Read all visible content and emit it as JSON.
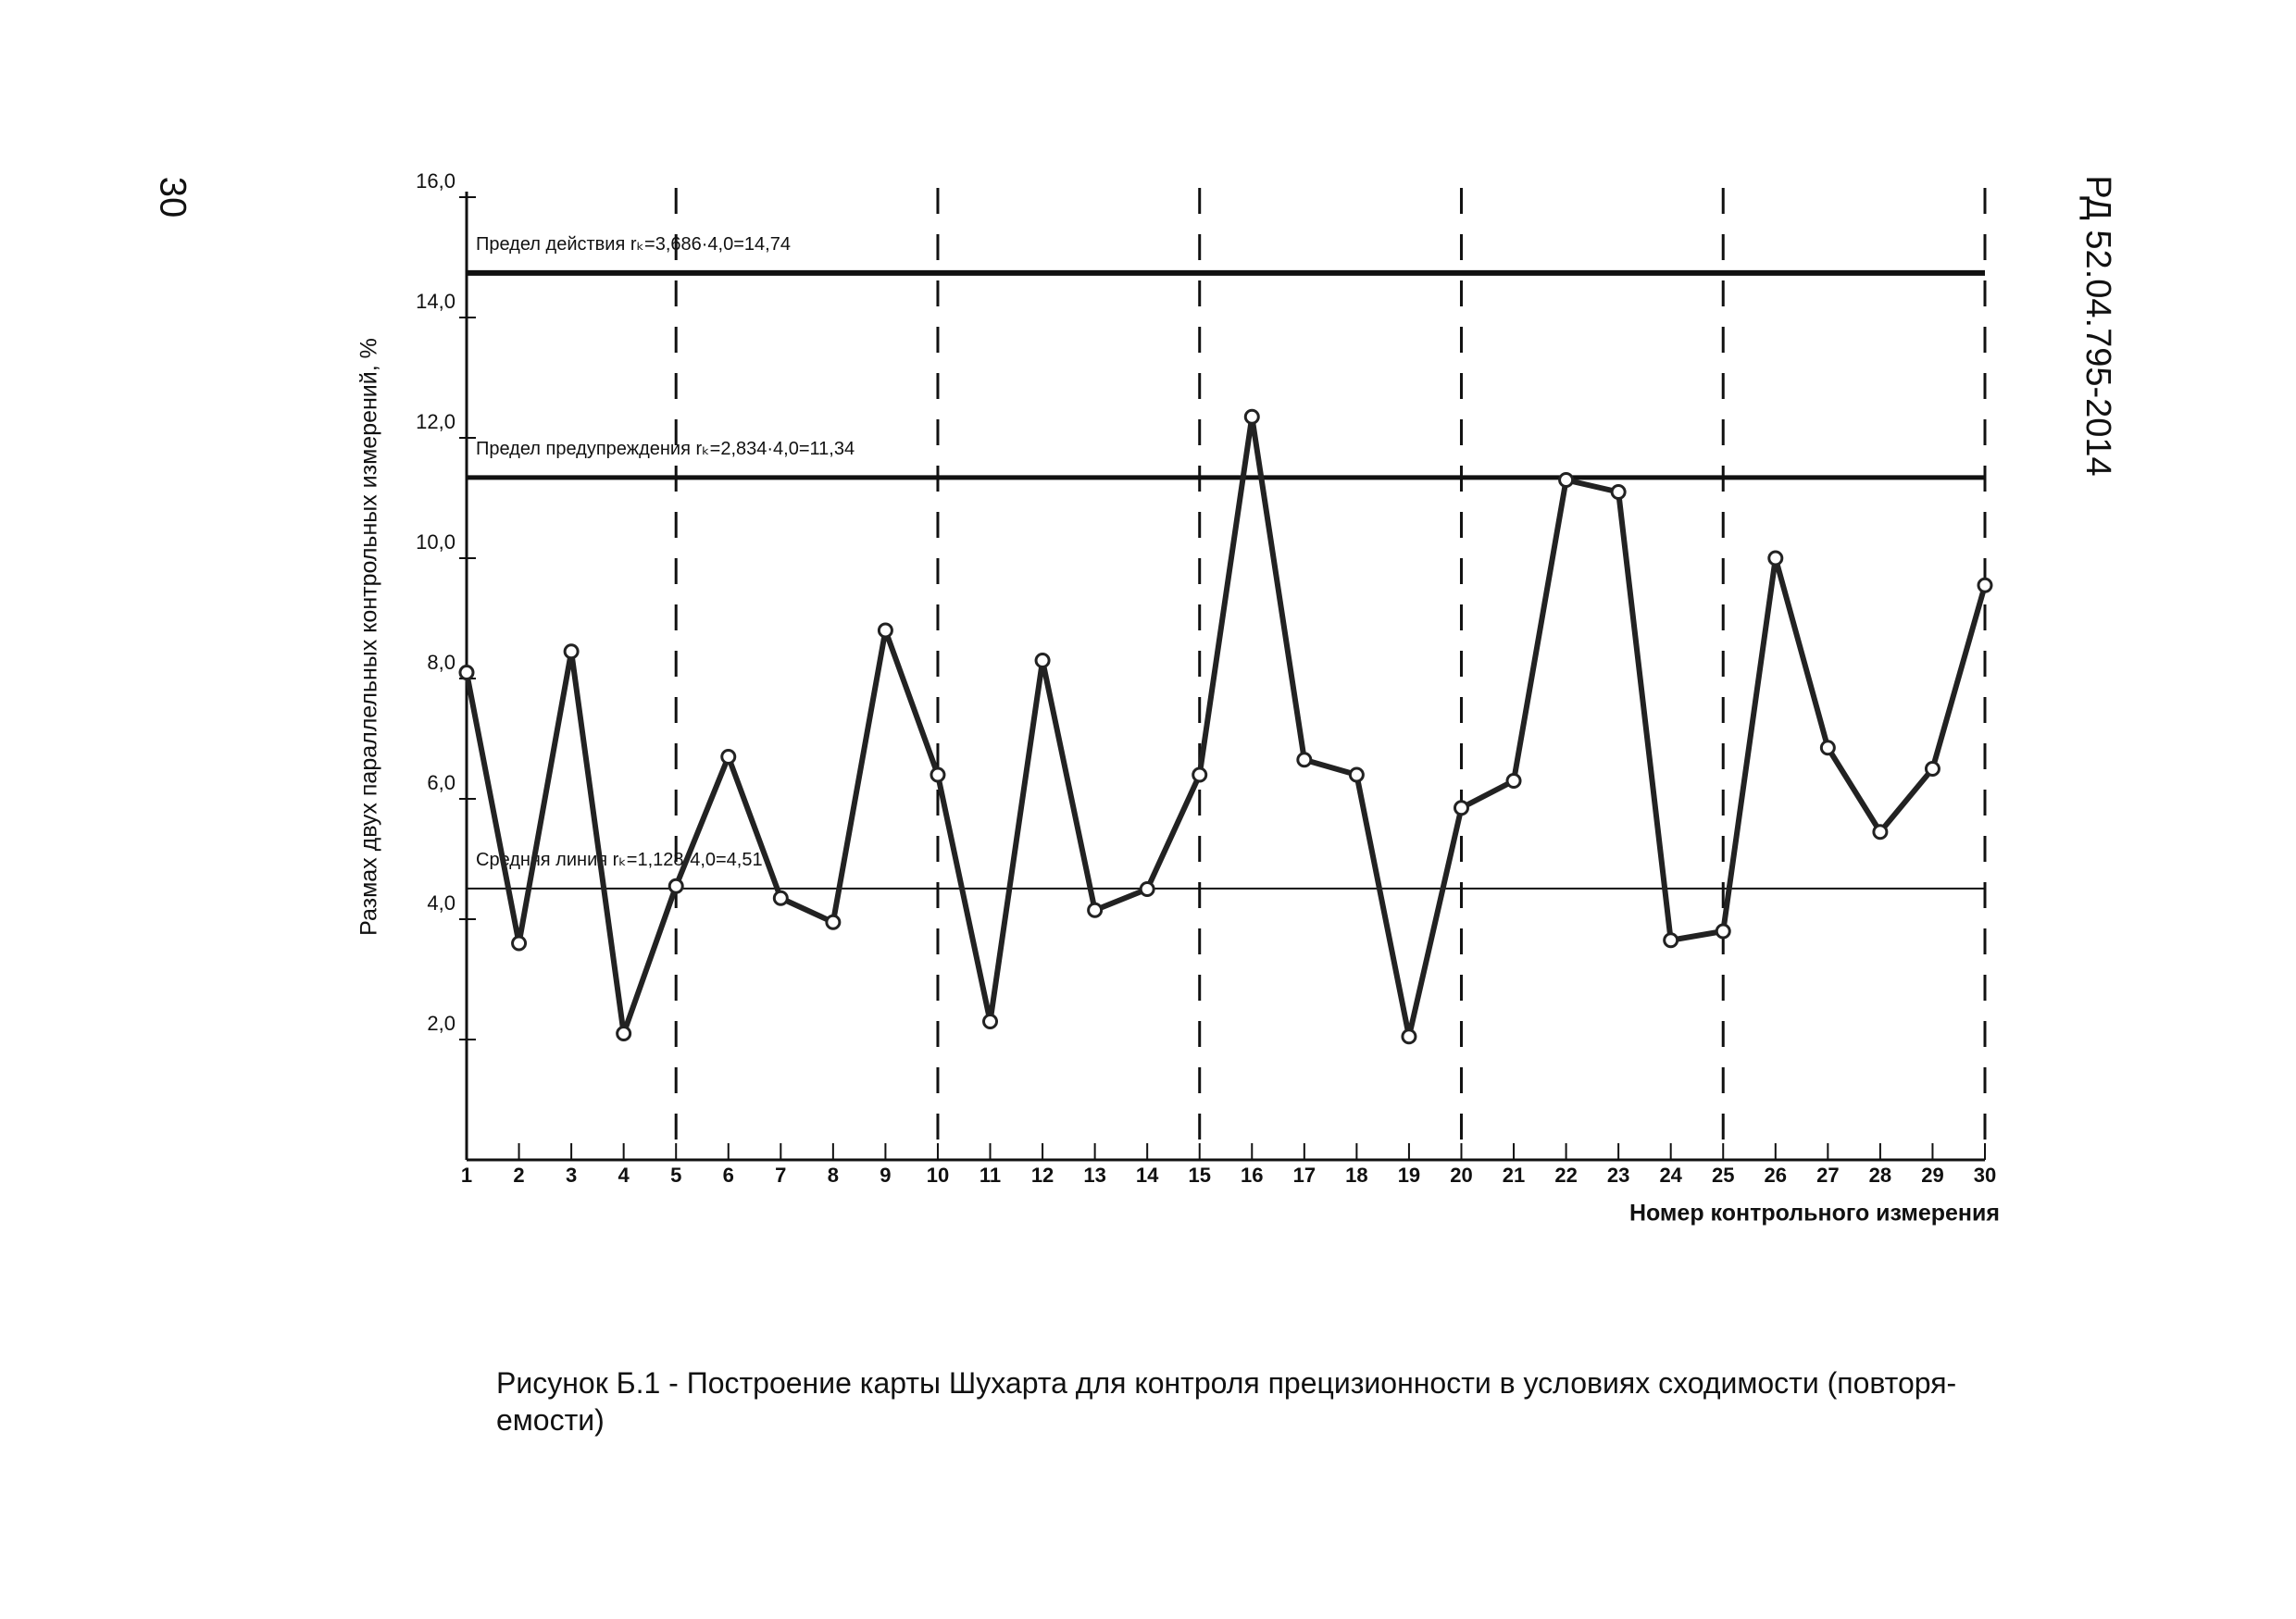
{
  "page": {
    "number": "30",
    "header": "РД 52.04.795-2014",
    "caption": [
      "Рисунок Б.1 - Построение карты Шухарта для контроля прецизионности в условиях сходимости (повторя-",
      "емости)"
    ]
  },
  "chart_data": {
    "type": "line",
    "x_label": "Номер контрольного измерения",
    "y_label": "Размах двух параллельных контрольных измерений, %",
    "x": [
      1,
      2,
      3,
      4,
      5,
      6,
      7,
      8,
      9,
      10,
      11,
      12,
      13,
      14,
      15,
      16,
      17,
      18,
      19,
      20,
      21,
      22,
      23,
      24,
      25,
      26,
      27,
      28,
      29,
      30
    ],
    "values": [
      8.1,
      3.6,
      8.45,
      2.1,
      4.55,
      6.7,
      4.35,
      3.95,
      8.8,
      6.4,
      2.3,
      8.3,
      4.15,
      4.5,
      6.4,
      12.35,
      6.65,
      6.4,
      2.05,
      5.85,
      6.3,
      11.3,
      11.1,
      3.65,
      3.8,
      10.0,
      6.85,
      5.45,
      6.5,
      9.55
    ],
    "color": "#222222",
    "xlim": [
      1,
      30
    ],
    "xticks": [
      1,
      2,
      3,
      4,
      5,
      6,
      7,
      8,
      9,
      10,
      11,
      12,
      13,
      14,
      15,
      16,
      17,
      18,
      19,
      20,
      21,
      22,
      23,
      24,
      25,
      26,
      27,
      28,
      29,
      30
    ],
    "ylim": [
      0,
      16
    ],
    "yticks": [
      {
        "value": 2,
        "label": "2,0"
      },
      {
        "value": 4,
        "label": "4,0"
      },
      {
        "value": 6,
        "label": "6,0"
      },
      {
        "value": 8,
        "label": "8,0"
      },
      {
        "value": 10,
        "label": "10,0"
      },
      {
        "value": 12,
        "label": "12,0"
      },
      {
        "value": 14,
        "label": "14,0"
      },
      {
        "value": 16,
        "label": "16,0"
      }
    ],
    "reference_lines": [
      {
        "value": 14.74,
        "label": "Предел действия rₖ=3,686·4,0=14,74"
      },
      {
        "value": 11.34,
        "label": "Предел предупреждения rₖ=2,834·4,0=11,34"
      },
      {
        "value": 4.51,
        "label": "Средняя линия rₖ=1,128·4,0=4,51"
      }
    ],
    "dashed_x": [
      5,
      10,
      15,
      20,
      25,
      30
    ]
  }
}
